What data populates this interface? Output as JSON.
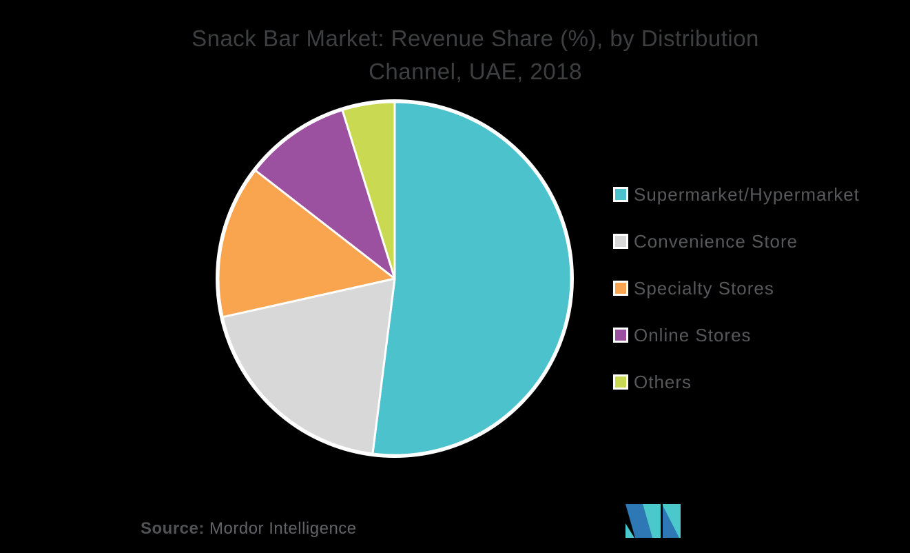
{
  "title": {
    "line1": "Snack Bar Market: Revenue Share (%), by Distribution",
    "line2": "Channel, UAE, 2018"
  },
  "legend": {
    "position": "right",
    "items": [
      {
        "label": "Supermarket/Hypermarket",
        "color": "#4CC2CC"
      },
      {
        "label": "Convenience Store",
        "color": "#D8D8D8"
      },
      {
        "label": "Specialty Stores",
        "color": "#F9A44F"
      },
      {
        "label": "Online Stores",
        "color": "#9B51A0"
      },
      {
        "label": "Others",
        "color": "#C9DA52"
      }
    ]
  },
  "chart_data": {
    "type": "pie",
    "title": "Snack Bar Market: Revenue Share (%), by Distribution Channel, UAE, 2018",
    "unit": "percent",
    "start_angle_deg": -90,
    "direction": "clockwise",
    "legend_position": "right",
    "series": [
      {
        "name": "Supermarket/Hypermarket",
        "value": 52.0,
        "color": "#4CC2CC"
      },
      {
        "name": "Convenience Store",
        "value": 19.5,
        "color": "#D8D8D8"
      },
      {
        "name": "Specialty Stores",
        "value": 14.0,
        "color": "#F9A44F"
      },
      {
        "name": "Online Stores",
        "value": 9.7,
        "color": "#9B51A0"
      },
      {
        "name": "Others",
        "value": 4.8,
        "color": "#C9DA52"
      }
    ],
    "slice_border_color": "#FFFFFF"
  },
  "source": {
    "label": "Source:",
    "text": "Mordor Intelligence"
  },
  "logo": {
    "name": "mordor-intelligence-logo",
    "blue": "#2E78B5",
    "teal": "#4AC8CC"
  },
  "colors": {
    "background": "#000000",
    "title_text": "#3E3F40",
    "legend_text": "#57585A",
    "source_text": "#5A5B5D"
  }
}
